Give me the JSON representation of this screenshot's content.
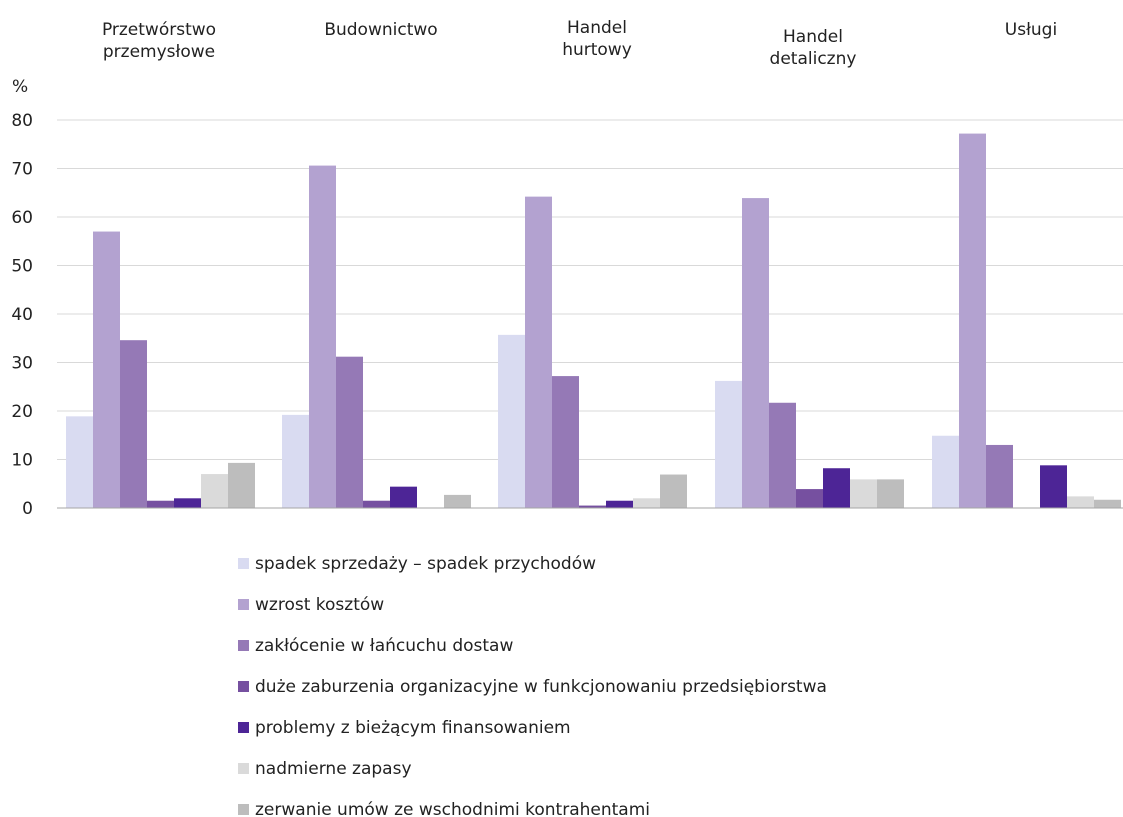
{
  "chart_data": {
    "type": "bar",
    "ylabel": "%",
    "ylim": [
      0,
      80
    ],
    "yticks": [
      0,
      10,
      20,
      30,
      40,
      50,
      60,
      70,
      80
    ],
    "grid": true,
    "legend_position": "bottom",
    "categories": [
      [
        "Przetwórstwo",
        "przemysłowe"
      ],
      [
        "Budownictwo"
      ],
      [
        "Handel",
        "hurtowy"
      ],
      [
        "Handel",
        "detaliczny"
      ],
      [
        "Usługi"
      ]
    ],
    "series": [
      {
        "name": "spadek sprzedaży – spadek przychodów",
        "color": "#d9dbf1",
        "values": [
          18.9,
          19.2,
          35.7,
          26.2,
          14.9
        ]
      },
      {
        "name": "wzrost kosztów",
        "color": "#b3a2d0",
        "values": [
          57.0,
          70.6,
          64.2,
          63.9,
          77.2
        ]
      },
      {
        "name": "zakłócenie w łańcuchu dostaw",
        "color": "#9579b6",
        "values": [
          34.6,
          31.2,
          27.2,
          21.7,
          13.0
        ]
      },
      {
        "name": "duże zaburzenia organizacyjne w funkcjonowaniu przedsiębiorstwa",
        "color": "#7650a0",
        "values": [
          1.5,
          1.5,
          0.5,
          3.9,
          0
        ]
      },
      {
        "name": "problemy z bieżącym finansowaniem",
        "color": "#4d2596",
        "values": [
          2.0,
          4.4,
          1.5,
          8.2,
          8.8
        ]
      },
      {
        "name": "nadmierne zapasy",
        "color": "#dadada",
        "values": [
          7.0,
          0,
          2.0,
          5.9,
          2.4
        ]
      },
      {
        "name": "zerwanie umów ze wschodnimi kontrahentami",
        "color": "#bdbdbd",
        "values": [
          9.3,
          2.7,
          6.9,
          5.9,
          1.7
        ]
      }
    ]
  }
}
